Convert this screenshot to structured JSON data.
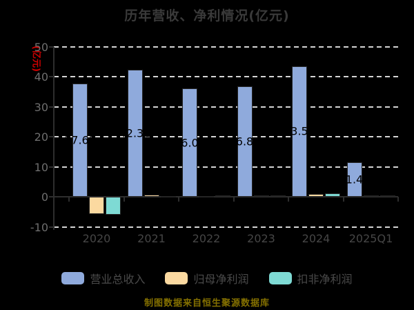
{
  "footer": {
    "text": "制图数据来自恒生聚源数据库"
  },
  "colors": {
    "background": "#000000",
    "title_text": "#3a3a3a",
    "grid": "#d6d6d6",
    "axis": "#2e2e2e",
    "y_tick_text": "#6e6e6e",
    "x_tick_text": "#464646",
    "legend_text": "#4a4a4a",
    "footer_text": "#847000",
    "y_axis_name_text": "#cf0000",
    "bar_label_text": "#000000"
  },
  "chart_data": {
    "type": "bar",
    "title": "历年营收、净利情况(亿元)",
    "ylabel": "(亿元)",
    "categories": [
      "2020",
      "2021",
      "2022",
      "2023",
      "2024",
      "2025Q1"
    ],
    "series": [
      {
        "id": "revenue",
        "name": "营业总收入",
        "color": "#8FAADC",
        "values": [
          37.63,
          42.31,
          36.06,
          36.82,
          43.51,
          11.44
        ],
        "data_labels": true
      },
      {
        "id": "net-profit",
        "name": "归母净利润",
        "color": "#FBD9A0",
        "values": [
          -5.8,
          0.7,
          0.3,
          0.45,
          0.9,
          0.35
        ],
        "data_labels": false
      },
      {
        "id": "non-gaap-net-profit",
        "name": "扣非净利润",
        "color": "#7EDAD4",
        "values": [
          -6.0,
          0.3,
          0.55,
          0.45,
          1.2,
          0.45
        ],
        "data_labels": false
      }
    ],
    "ylim": [
      -10,
      50
    ],
    "y_ticks": [
      50,
      40,
      30,
      20,
      10,
      0,
      -10
    ],
    "grid": "horizontal-dashed-white-no-zero-line",
    "legend_position": "bottom"
  }
}
